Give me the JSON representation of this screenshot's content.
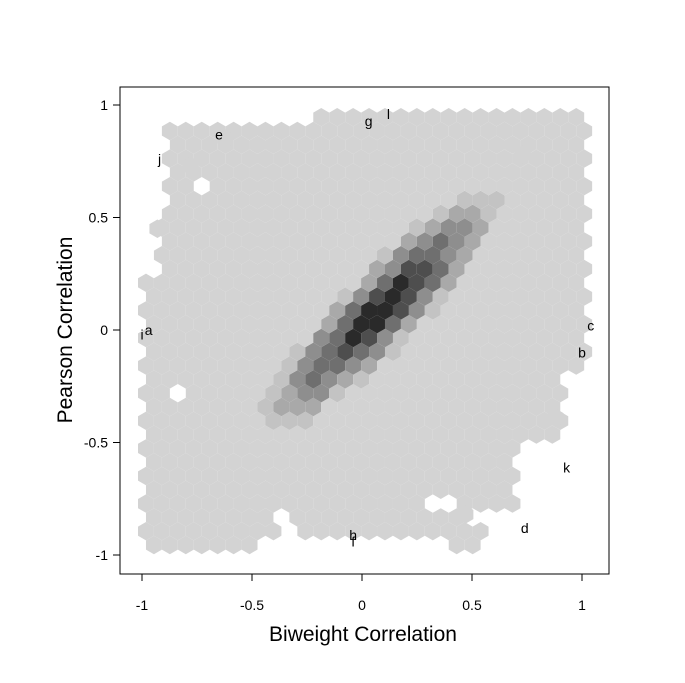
{
  "chart_data": {
    "type": "heatmap",
    "subtype": "hexbin",
    "title": "",
    "xlabel": "Biweight Correlation",
    "ylabel": "Pearson Correlation",
    "xlim": [
      -1.05,
      1.05
    ],
    "ylim": [
      -1.05,
      1.05
    ],
    "x_ticks": [
      -1,
      -0.5,
      0,
      0.5,
      1
    ],
    "x_tick_labels": [
      "-1",
      "-0.5",
      "0",
      "0.5",
      "1"
    ],
    "y_ticks": [
      -1,
      -0.5,
      0,
      0.5,
      1
    ],
    "y_tick_labels": [
      "-1",
      "-0.5",
      "0",
      "0.5",
      "1"
    ],
    "grid": false,
    "density_colors": [
      "#d3d3d3",
      "#c3c3c3",
      "#a9a9a9",
      "#8e8e8e",
      "#6f6f6f",
      "#4e4e4e",
      "#2a2a2a"
    ],
    "point_labels": [
      {
        "label": "a",
        "x": -0.97,
        "y": 0.0
      },
      {
        "label": "i",
        "x": -1.0,
        "y": -0.02
      },
      {
        "label": "j",
        "x": -0.92,
        "y": 0.76
      },
      {
        "label": "e",
        "x": -0.65,
        "y": 0.87
      },
      {
        "label": "g",
        "x": 0.03,
        "y": 0.93
      },
      {
        "label": "l",
        "x": 0.12,
        "y": 0.96
      },
      {
        "label": "c",
        "x": 1.04,
        "y": 0.02
      },
      {
        "label": "b",
        "x": 1.0,
        "y": -0.1
      },
      {
        "label": "k",
        "x": 0.93,
        "y": -0.61
      },
      {
        "label": "d",
        "x": 0.74,
        "y": -0.88
      },
      {
        "label": "h",
        "x": -0.04,
        "y": -0.91
      },
      {
        "label": "f",
        "x": -0.04,
        "y": -0.94
      }
    ]
  }
}
